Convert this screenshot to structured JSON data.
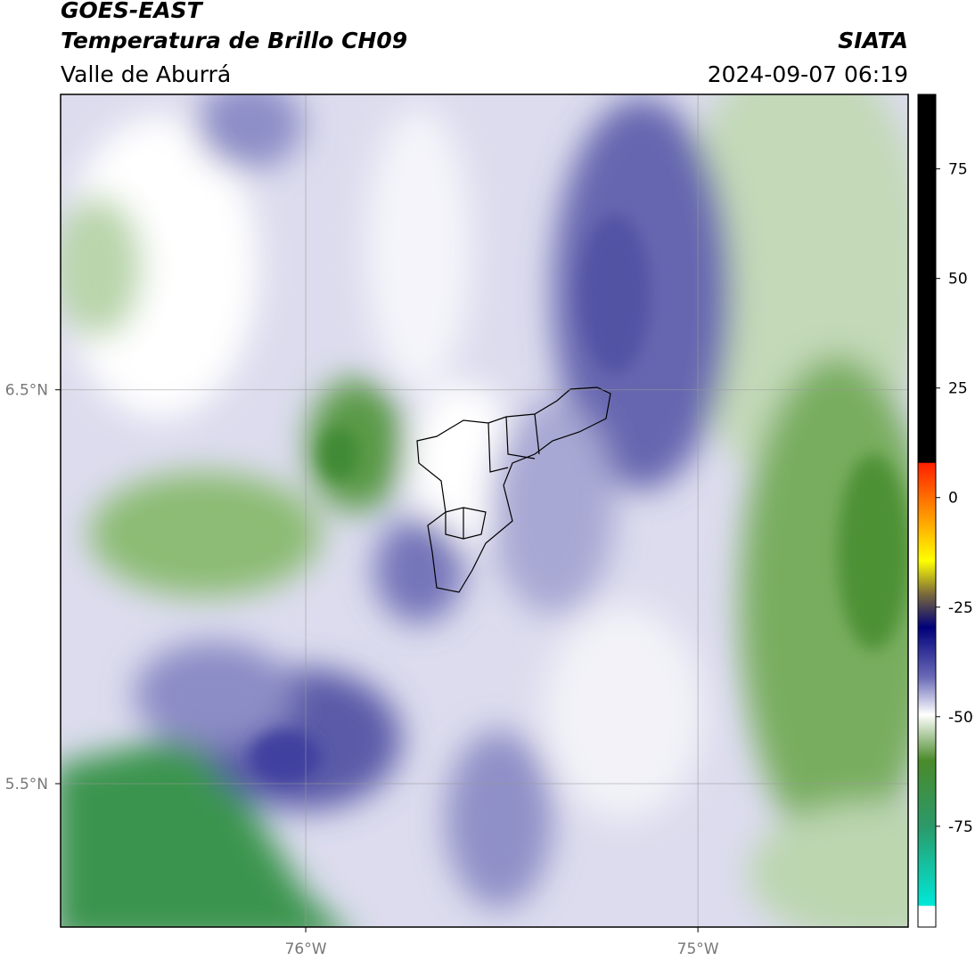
{
  "header": {
    "title": "GOES-EAST",
    "subtitle": "Temperatura de Brillo CH09",
    "region": "Valle de Aburrá",
    "source": "SIATA",
    "timestamp": "2024-09-07 06:19"
  },
  "map": {
    "xlim": [
      -76.625,
      -74.464
    ],
    "ylim": [
      5.136,
      7.25
    ],
    "xticks": [
      {
        "value": -76,
        "label": "76°W"
      },
      {
        "value": -75,
        "label": "75°W"
      }
    ],
    "yticks": [
      {
        "value": 6.5,
        "label": "6.5°N"
      },
      {
        "value": 5.5,
        "label": "5.5°N"
      }
    ],
    "grid": true
  },
  "colorbar": {
    "lim": [
      -98,
      92
    ],
    "ticks": [
      75,
      50,
      25,
      0,
      -25,
      -50,
      -75
    ]
  }
}
